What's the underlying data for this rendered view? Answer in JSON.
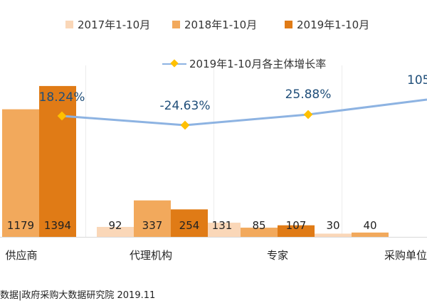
{
  "chart_data": {
    "type": "bar",
    "categories": [
      "供应商",
      "代理机构",
      "专家",
      "采购单位"
    ],
    "series": [
      {
        "name": "2017年1-10月",
        "values": [
          null,
          92,
          131,
          30
        ],
        "color": "#fad7b8"
      },
      {
        "name": "2018年1-10月",
        "values": [
          1179,
          337,
          85,
          40
        ],
        "color": "#f2a95c"
      },
      {
        "name": "2019年1-10月",
        "values": [
          1394,
          254,
          107,
          null
        ],
        "color": "#e07b16"
      }
    ],
    "line_series": {
      "name": "2019年1-10月各主体增长率",
      "values": [
        "18.24%",
        "-24.63%",
        "25.88%",
        "105"
      ],
      "color": "#8db3e2",
      "marker_color": "#ffc000"
    },
    "ylim": [
      0,
      1400
    ],
    "grid": false,
    "legend": "top",
    "source_text": "数据|政府采购大数据研究院 2019.11"
  }
}
